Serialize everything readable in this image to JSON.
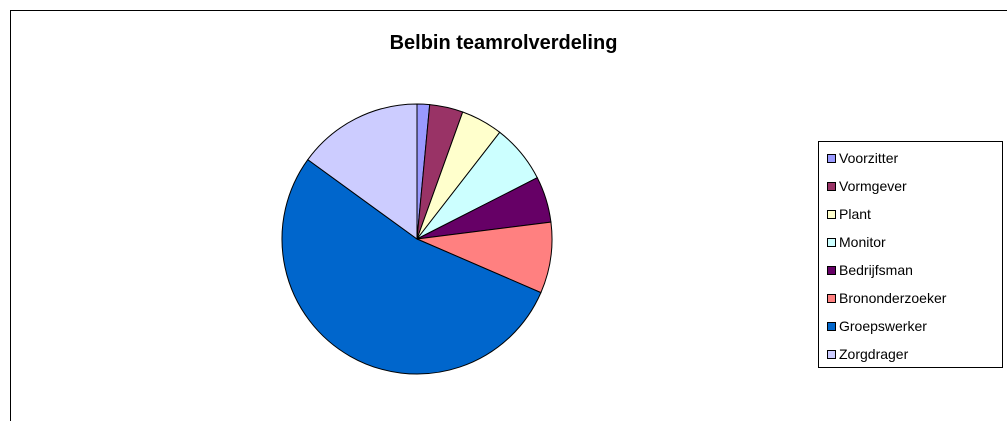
{
  "chart_data": {
    "type": "pie",
    "title": "Belbin teamrolverdeling",
    "legend_position": "right",
    "slices": [
      {
        "label": "Voorzitter",
        "value": 1.5,
        "color": "#9999FF"
      },
      {
        "label": "Vormgever",
        "value": 4.0,
        "color": "#993366"
      },
      {
        "label": "Plant",
        "value": 5.0,
        "color": "#FFFFCC"
      },
      {
        "label": "Monitor",
        "value": 7.0,
        "color": "#CCFFFF"
      },
      {
        "label": "Bedrijfsman",
        "value": 5.5,
        "color": "#660066"
      },
      {
        "label": "Brononderzoeker",
        "value": 8.5,
        "color": "#FF8080"
      },
      {
        "label": "Groepswerker",
        "value": 53.5,
        "color": "#0066CC"
      },
      {
        "label": "Zorgdrager",
        "value": 15.0,
        "color": "#CCCCFF"
      }
    ]
  }
}
